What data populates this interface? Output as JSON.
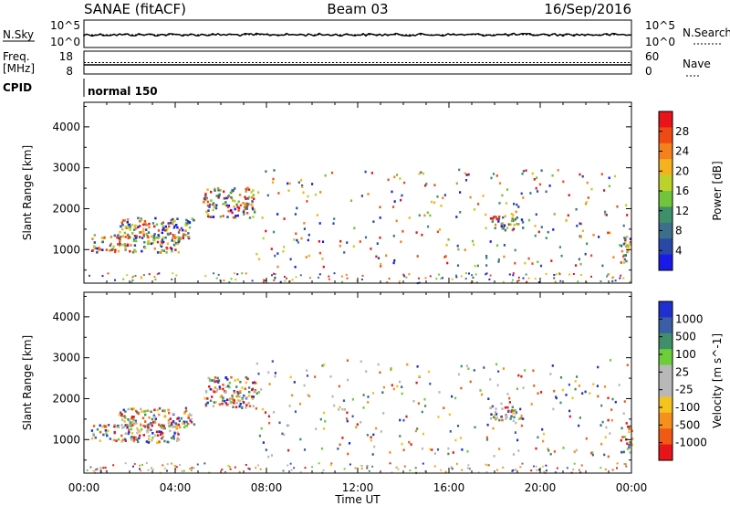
{
  "header": {
    "radar": "SANAE (fitACF)",
    "beam": "Beam 03",
    "date": "16/Sep/2016"
  },
  "top_panels": {
    "nsky_label": "N.Sky",
    "nsearch_label": "N.Search",
    "nsky_ticks": [
      "10^5",
      "10^0"
    ],
    "nsearch_ticks": [
      "10^5",
      "10^0"
    ],
    "freq_label": "Freq.",
    "freq_unit": "[MHz]",
    "freq_ticks": [
      "18",
      "8"
    ],
    "nave_label": "Nave",
    "nave_ticks": [
      "60",
      "0"
    ],
    "cpid_label": "CPID",
    "cpid_value": "normal 150",
    "freq_value_mhz": 12,
    "nave_value": 30
  },
  "chart_data": [
    {
      "type": "heatmap",
      "parameter": "Power",
      "ylabel": "Slant Range [km]",
      "xlabel": "Time UT",
      "x_ticks": [
        "00:00",
        "04:00",
        "08:00",
        "12:00",
        "16:00",
        "20:00",
        "00:00"
      ],
      "xlim_hours": [
        0,
        24
      ],
      "ylim_km": [
        180,
        4600
      ],
      "y_ticks": [
        1000,
        2000,
        3000,
        4000
      ],
      "colorbar": {
        "label": "Power [dB]",
        "ticks": [
          "28",
          "24",
          "20",
          "16",
          "12",
          "8",
          "4"
        ],
        "colors": [
          "#e8141a",
          "#f04a14",
          "#f5811c",
          "#f5b21f",
          "#bcd22a",
          "#72c43a",
          "#3f8f6a",
          "#3b6f8c",
          "#2a48a8",
          "#1a1ae8"
        ]
      },
      "regions": [
        {
          "t0": 0.3,
          "t1": 4.2,
          "r0": 950,
          "r1": 1400,
          "level": "mixed"
        },
        {
          "t0": 1.5,
          "t1": 4.8,
          "r0": 1300,
          "r1": 1800,
          "level": "mixed"
        },
        {
          "t0": 5.2,
          "t1": 7.5,
          "r0": 1800,
          "r1": 2550,
          "level": "mixed"
        },
        {
          "t0": 17.7,
          "t1": 19.2,
          "r0": 1500,
          "r1": 1850,
          "level": "mixed"
        },
        {
          "t0": 23.5,
          "t1": 24.0,
          "r0": 700,
          "r1": 1350,
          "level": "mixed"
        }
      ]
    },
    {
      "type": "heatmap",
      "parameter": "Velocity",
      "ylabel": "Slant Range [km]",
      "xlabel": "Time UT",
      "x_ticks": [
        "00:00",
        "04:00",
        "08:00",
        "12:00",
        "16:00",
        "20:00",
        "00:00"
      ],
      "xlim_hours": [
        0,
        24
      ],
      "ylim_km": [
        180,
        4600
      ],
      "y_ticks": [
        1000,
        2000,
        3000,
        4000
      ],
      "colorbar": {
        "label": "Velocity [m s^-1]",
        "ticks": [
          "1000",
          "500",
          "100",
          "25",
          "-25",
          "-100",
          "-500",
          "-1000"
        ],
        "colors": [
          "#1f2fd0",
          "#3b5fa6",
          "#3f8f6a",
          "#6ccf3a",
          "#b8b8b8",
          "#b8b8b8",
          "#f5c21f",
          "#f5901c",
          "#f05a14",
          "#e8141a"
        ]
      },
      "regions": [
        {
          "t0": 0.3,
          "t1": 4.2,
          "r0": 950,
          "r1": 1400,
          "level": "mixed"
        },
        {
          "t0": 1.5,
          "t1": 4.8,
          "r0": 1300,
          "r1": 1800,
          "level": "mixed"
        },
        {
          "t0": 5.2,
          "t1": 7.5,
          "r0": 1800,
          "r1": 2550,
          "level": "mixed"
        },
        {
          "t0": 17.7,
          "t1": 19.2,
          "r0": 1500,
          "r1": 1850,
          "level": "mixed"
        },
        {
          "t0": 23.5,
          "t1": 24.0,
          "r0": 700,
          "r1": 1350,
          "level": "mixed"
        }
      ]
    }
  ]
}
